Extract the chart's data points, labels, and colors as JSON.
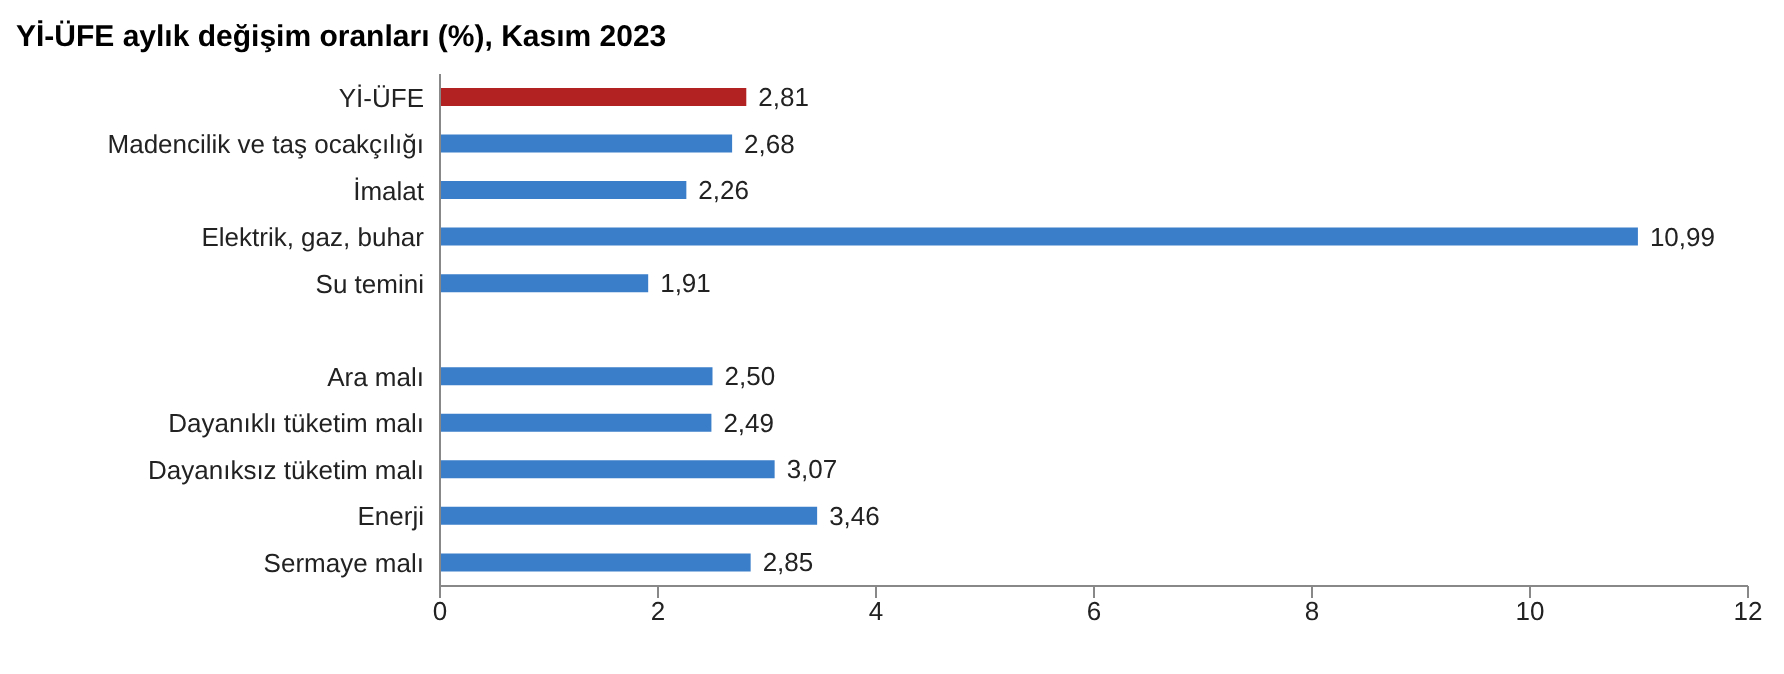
{
  "chart_data": {
    "type": "bar",
    "orientation": "horizontal",
    "title": "Yİ-ÜFE aylık değişim oranları (%), Kasım 2023",
    "categories": [
      "Yİ-ÜFE",
      "Madencilik ve taş ocakçılığı",
      "İmalat",
      "Elektrik, gaz, buhar",
      "Su temini",
      null,
      "Ara malı",
      "Dayanıklı tüketim malı",
      "Dayanıksız tüketim malı",
      "Enerji",
      "Sermaye malı"
    ],
    "values": [
      2.81,
      2.68,
      2.26,
      10.99,
      1.91,
      null,
      2.5,
      2.49,
      3.07,
      3.46,
      2.85
    ],
    "value_labels": [
      "2,81",
      "2,68",
      "2,26",
      "10,99",
      "1,91",
      null,
      "2,50",
      "2,49",
      "3,07",
      "3,46",
      "2,85"
    ],
    "colors": [
      "#b22222",
      "#3a7dc9",
      "#3a7dc9",
      "#3a7dc9",
      "#3a7dc9",
      "#3a7dc9",
      "#3a7dc9",
      "#3a7dc9",
      "#3a7dc9",
      "#3a7dc9",
      "#3a7dc9"
    ],
    "xlim": [
      0,
      12
    ],
    "xticks": [
      0,
      2,
      4,
      6,
      8,
      10,
      12
    ],
    "grid": false
  }
}
